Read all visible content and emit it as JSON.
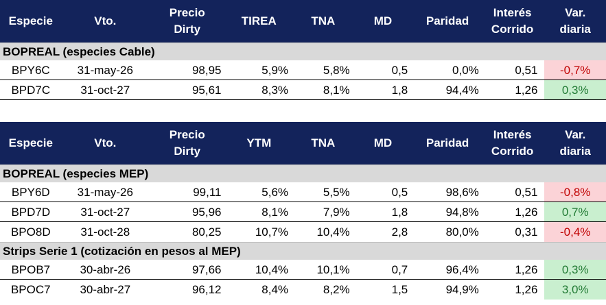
{
  "table1": {
    "headers": [
      "Especie",
      "Vto.",
      "Precio\nDirty",
      "TIREA",
      "TNA",
      "MD",
      "Paridad",
      "Interés\nCorrido",
      "Var.\ndiaria"
    ],
    "section": "BOPREAL (especies Cable)",
    "rows": [
      {
        "especie": "BPY6C",
        "vto": "31-may-26",
        "precio": "98,95",
        "tir": "5,9%",
        "tna": "5,8%",
        "md": "0,5",
        "paridad": "0,0%",
        "interes": "0,51",
        "var": "-0,7%"
      },
      {
        "especie": "BPD7C",
        "vto": "31-oct-27",
        "precio": "95,61",
        "tir": "8,3%",
        "tna": "8,1%",
        "md": "1,8",
        "paridad": "94,4%",
        "interes": "1,26",
        "var": "0,3%"
      }
    ]
  },
  "table2": {
    "headers": [
      "Especie",
      "Vto.",
      "Precio\nDirty",
      "YTM",
      "TNA",
      "MD",
      "Paridad",
      "Interés\nCorrido",
      "Var.\ndiaria"
    ],
    "section": "BOPREAL (especies MEP)",
    "rows": [
      {
        "especie": "BPY6D",
        "vto": "31-may-26",
        "precio": "99,11",
        "tir": "5,6%",
        "tna": "5,5%",
        "md": "0,5",
        "paridad": "98,6%",
        "interes": "0,51",
        "var": "-0,8%"
      },
      {
        "especie": "BPD7D",
        "vto": "31-oct-27",
        "precio": "95,96",
        "tir": "8,1%",
        "tna": "7,9%",
        "md": "1,8",
        "paridad": "94,8%",
        "interes": "1,26",
        "var": "0,7%"
      },
      {
        "especie": "BPO8D",
        "vto": "31-oct-28",
        "precio": "80,25",
        "tir": "10,7%",
        "tna": "10,4%",
        "md": "2,8",
        "paridad": "80,0%",
        "interes": "0,31",
        "var": "-0,4%"
      }
    ],
    "section2": "Strips Serie 1 (cotización en pesos al MEP)",
    "rows2": [
      {
        "especie": "BPOB7",
        "vto": "30-abr-26",
        "precio": "97,66",
        "tir": "10,4%",
        "tna": "10,1%",
        "md": "0,7",
        "paridad": "96,4%",
        "interes": "1,26",
        "var": "0,3%"
      },
      {
        "especie": "BPOC7",
        "vto": "30-abr-27",
        "precio": "96,12",
        "tir": "8,4%",
        "tna": "8,2%",
        "md": "1,5",
        "paridad": "94,9%",
        "interes": "1,26",
        "var": "3,0%"
      }
    ]
  },
  "colors": {
    "header_bg": "#13235b",
    "section_bg": "#d9d9d9",
    "negative_bg": "#fbd3d7",
    "negative_text": "#c00000",
    "positive_bg": "#c9efcf",
    "positive_text": "#217a34"
  }
}
